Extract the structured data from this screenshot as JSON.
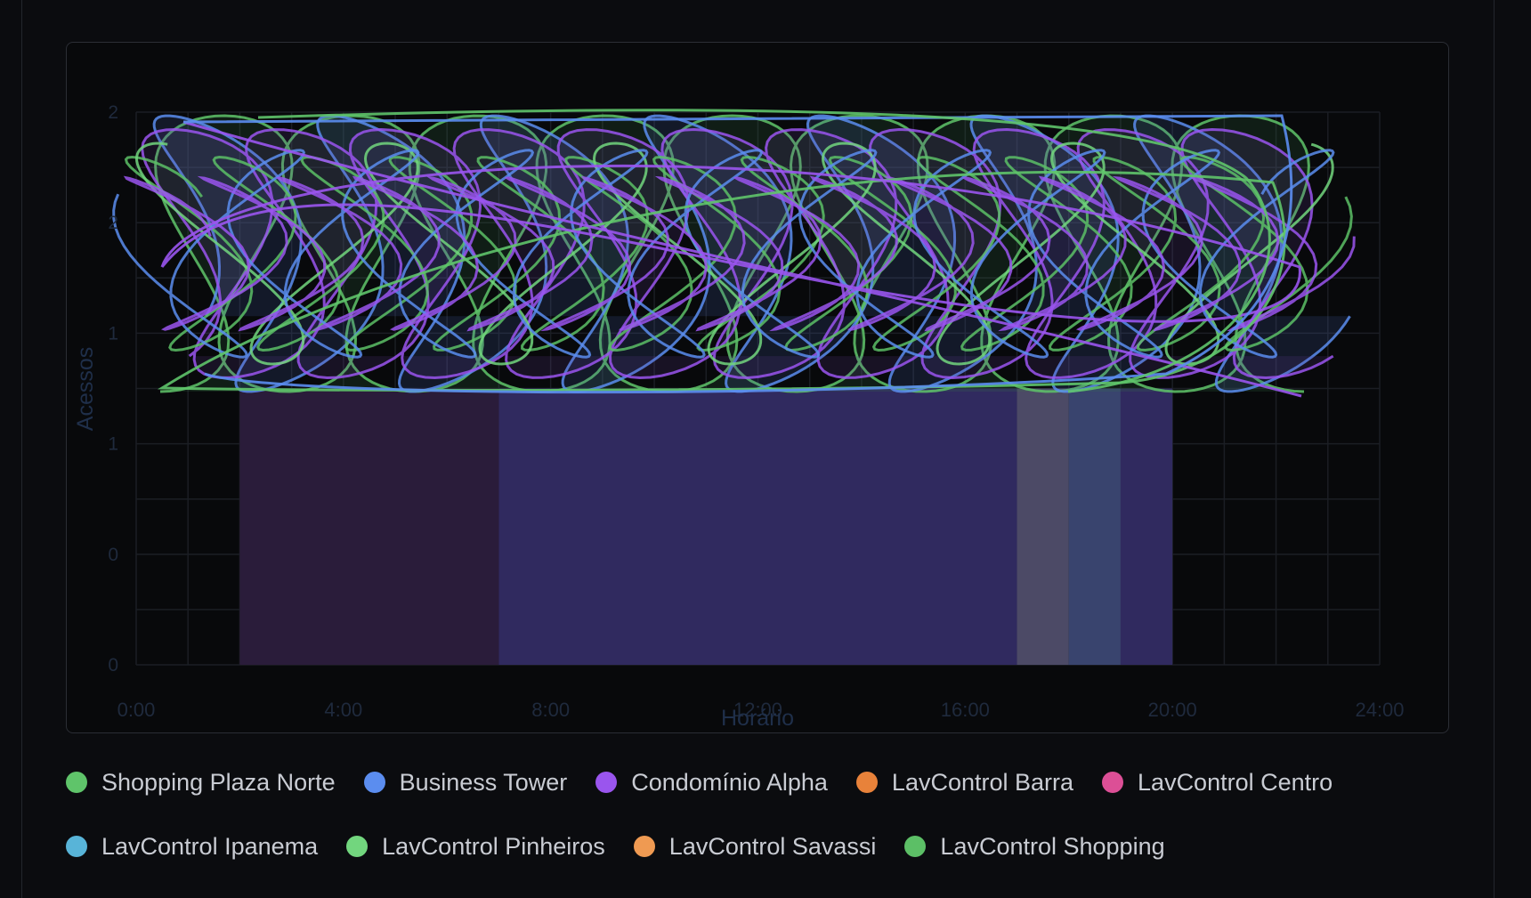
{
  "chart_data": {
    "type": "line",
    "xlabel": "Horário",
    "ylabel": "Acessos",
    "x_ticks": [
      "0:00",
      "4:00",
      "8:00",
      "12:00",
      "16:00",
      "20:00",
      "24:00"
    ],
    "y_ticks": [
      "0",
      "0",
      "1",
      "1",
      "2",
      "2"
    ],
    "xlim": [
      0,
      24
    ],
    "ylim": [
      0,
      2.5
    ],
    "grid": true,
    "legend_position": "bottom",
    "series": [
      {
        "name": "Shopping Plaza Norte",
        "color": "#5fc46a"
      },
      {
        "name": "Business Tower",
        "color": "#5b8def"
      },
      {
        "name": "Condomínio Alpha",
        "color": "#9a55ee"
      },
      {
        "name": "LavControl Barra",
        "color": "#e8823a"
      },
      {
        "name": "LavControl Centro",
        "color": "#dc4f96"
      },
      {
        "name": "LavControl Ipanema",
        "color": "#58b4d8"
      },
      {
        "name": "LavControl Pinheiros",
        "color": "#72d67e"
      },
      {
        "name": "LavControl Savassi",
        "color": "#ef9a52"
      },
      {
        "name": "LavControl Shopping",
        "color": "#5cbf66"
      }
    ],
    "bars": [
      {
        "x0": 2,
        "x1": 7,
        "y": 1.25,
        "color": "#2a1c3a"
      },
      {
        "x0": 7,
        "x1": 17,
        "y": 1.25,
        "color": "#302a5f"
      },
      {
        "x0": 17,
        "x1": 18,
        "y": 1.25,
        "color": "#4c4a66"
      },
      {
        "x0": 18,
        "x1": 19,
        "y": 1.25,
        "color": "#39446e"
      },
      {
        "x0": 19,
        "x1": 20,
        "y": 1.25,
        "color": "#302a5f"
      }
    ]
  }
}
